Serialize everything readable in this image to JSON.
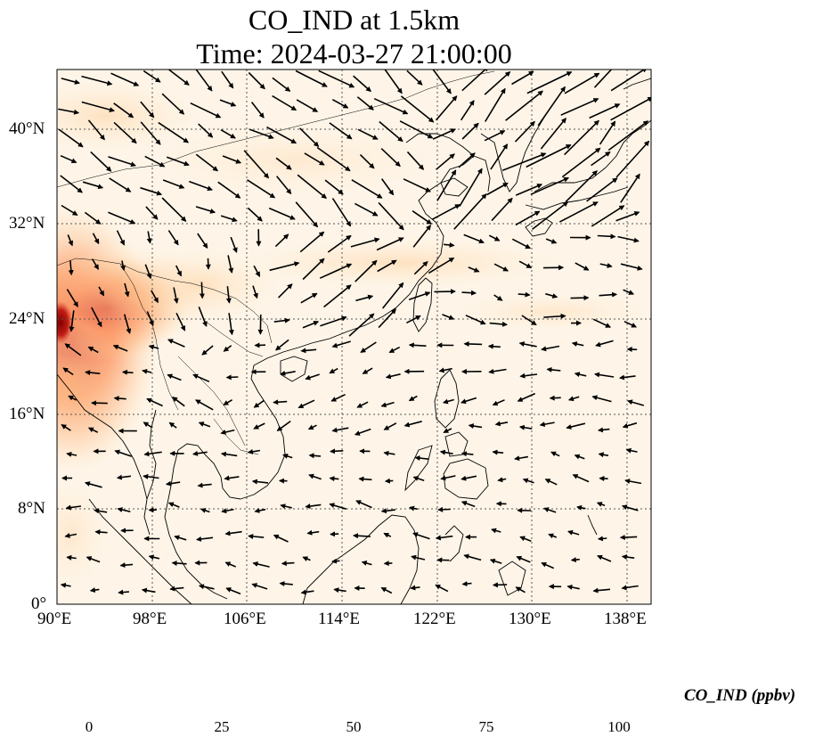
{
  "title": {
    "line1": "CO_IND at 1.5km",
    "line2": "Time: 2024-03-27 21:00:00"
  },
  "map": {
    "lon_range": [
      90,
      140
    ],
    "lat_range": [
      0,
      45
    ],
    "lon_ticks": [
      "90°E",
      "98°E",
      "106°E",
      "114°E",
      "122°E",
      "130°E",
      "138°E"
    ],
    "lat_ticks": [
      "0°",
      "8°N",
      "16°N",
      "24°N",
      "32°N",
      "40°N"
    ],
    "gridlines": "dotted",
    "field": "CO_IND concentration, shaded (OrRd colormap)",
    "vectors": "wind arrows"
  },
  "colorbar": {
    "label": "CO_IND (ppbv)",
    "ticks": [
      "0",
      "25",
      "50",
      "75",
      "100"
    ],
    "range": [
      0,
      100
    ],
    "extend": "both",
    "colors": [
      "#fff7ec",
      "#fee8c8",
      "#fdd49e",
      "#fdbb84",
      "#fc8d59",
      "#ef6548",
      "#d7301f",
      "#b30000",
      "#7f0000"
    ]
  }
}
